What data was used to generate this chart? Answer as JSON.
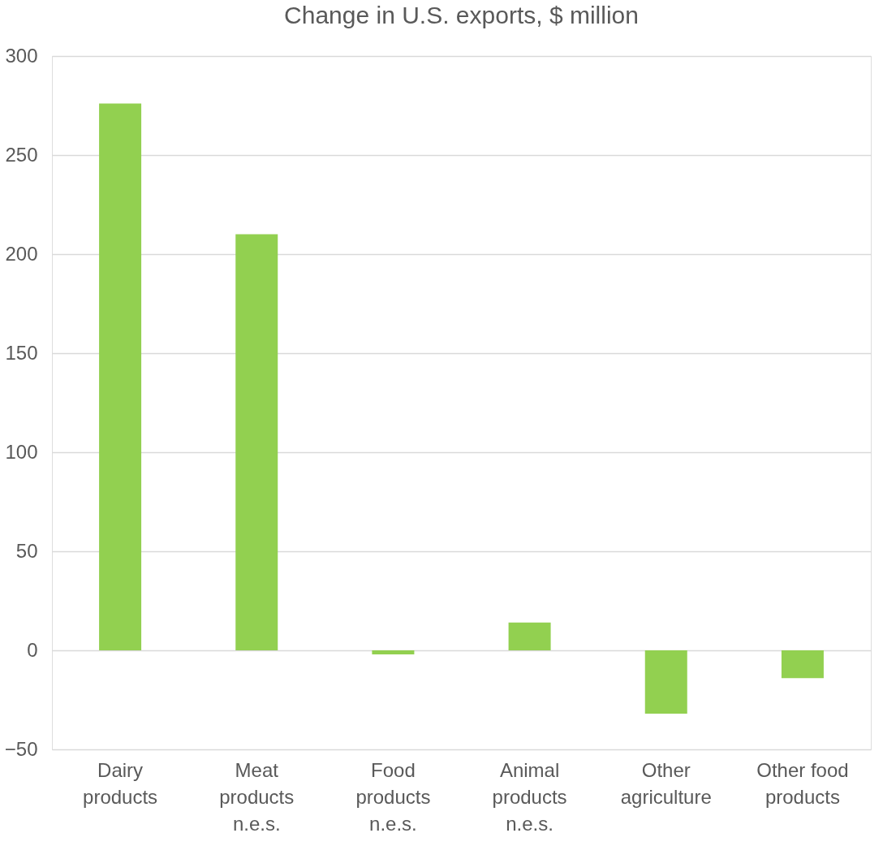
{
  "chart_data": {
    "type": "bar",
    "title": "Change in U.S. exports, $ million",
    "categories": [
      "Dairy products",
      "Meat products n.e.s.",
      "Food products n.e.s.",
      "Animal products n.e.s.",
      "Other agriculture",
      "Other food products"
    ],
    "values": [
      276,
      210,
      -2,
      14,
      -32,
      -14
    ],
    "color": "#92d050",
    "ylim": [
      -50,
      300
    ],
    "yticks": [
      -50,
      0,
      50,
      100,
      150,
      200,
      250,
      300
    ],
    "grid": "y"
  }
}
